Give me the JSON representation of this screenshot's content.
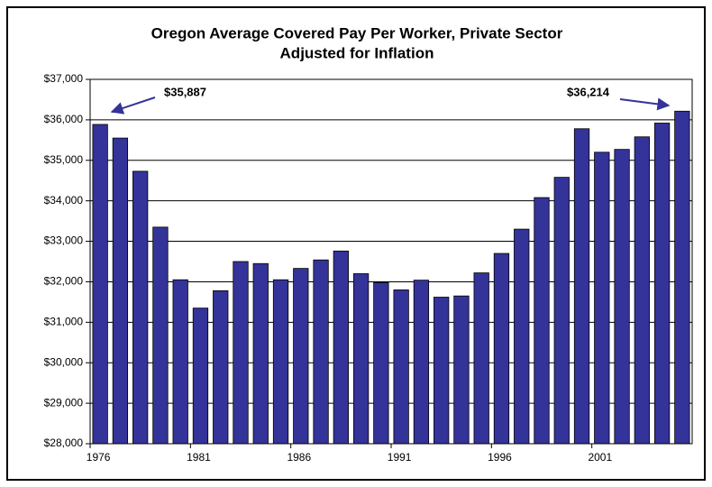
{
  "chart_data": {
    "type": "bar",
    "title": "Oregon Average Covered Pay Per Worker, Private Sector",
    "subtitle": "Adjusted for Inflation",
    "categories": [
      "1976",
      null,
      null,
      null,
      null,
      "1981",
      null,
      null,
      null,
      null,
      "1986",
      null,
      null,
      null,
      null,
      "1991",
      null,
      null,
      null,
      null,
      "1996",
      null,
      null,
      null,
      null,
      "2001",
      null,
      null,
      null,
      null
    ],
    "values": [
      35887,
      35550,
      34730,
      33350,
      32050,
      31350,
      31780,
      32500,
      32450,
      32050,
      32330,
      32540,
      32760,
      32200,
      31980,
      31800,
      32040,
      31620,
      31650,
      32220,
      32700,
      33300,
      34080,
      34580,
      35780,
      35200,
      35270,
      35580,
      35920,
      36214
    ],
    "value_labels": [
      "$35,887",
      null,
      null,
      null,
      null,
      null,
      null,
      null,
      null,
      null,
      null,
      null,
      null,
      null,
      null,
      null,
      null,
      null,
      null,
      null,
      null,
      null,
      null,
      null,
      null,
      null,
      null,
      null,
      null,
      "$36,214"
    ],
    "color": "#333399",
    "ylim": [
      28000,
      37000
    ],
    "yticks": [
      {
        "value": 28000,
        "label": "$28,000"
      },
      {
        "value": 29000,
        "label": "$29,000"
      },
      {
        "value": 30000,
        "label": "$30,000"
      },
      {
        "value": 31000,
        "label": "$31,000"
      },
      {
        "value": 32000,
        "label": "$32,000"
      },
      {
        "value": 33000,
        "label": "$33,000"
      },
      {
        "value": 34000,
        "label": "$34,000"
      },
      {
        "value": 35000,
        "label": "$35,000"
      },
      {
        "value": 36000,
        "label": "$36,000"
      },
      {
        "value": 37000,
        "label": "$37,000"
      }
    ],
    "grid": true
  }
}
